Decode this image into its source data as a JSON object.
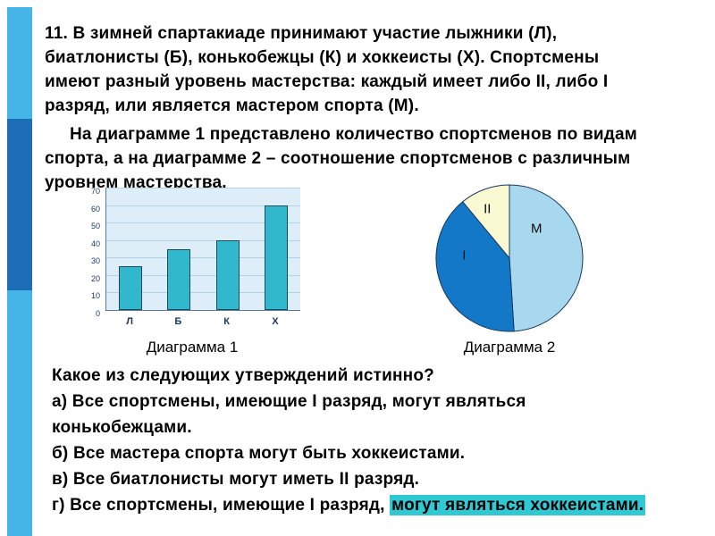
{
  "colors": {
    "stripe_light": "#45b5e7",
    "stripe_dark": "#1d6db8",
    "highlight": "#2fc9d4"
  },
  "problem": {
    "number": "11.",
    "p1_lines": [
      "В зимней спартакиаде принимают участие лыжники (Л),",
      "биатлонисты (Б), конькобежцы (К) и хоккеисты (Х). Спортсмены",
      "имеют разный уровень мастерства: каждый имеет либо II, либо I",
      "разряд, или является мастером спорта (М)."
    ],
    "p2_lines": [
      "На диаграмме 1 представлено количество спортсменов по видам",
      "спорта, а на диаграмме 2 – соотношение спортсменов с различным",
      "уровнем мастерства."
    ]
  },
  "question": {
    "lines": [
      "Какое из следующих утверждений истинно?",
      "а) Все спортсмены, имеющие I разряд, могут являться",
      "конькобежцами.",
      "б) Все мастера спорта могут быть хоккеистами.",
      "в) Все биатлонисты могут иметь II разряд."
    ],
    "last_line_prefix": "г) Все спортсмены, имеющие I разряд, ",
    "last_line_highlight": "могут являться хоккеистами."
  },
  "chart_data": [
    {
      "type": "bar",
      "title": "Диаграмма 1",
      "categories": [
        "Л",
        "Б",
        "К",
        "Х"
      ],
      "values": [
        25,
        35,
        40,
        60
      ],
      "ylim": [
        0,
        70
      ],
      "yticks": [
        0,
        10,
        20,
        30,
        40,
        50,
        60,
        70
      ],
      "xlabel": "",
      "ylabel": "",
      "grid": true,
      "legend": "none",
      "bar_color": "#31b8cd",
      "bar_border": "#1a4a66",
      "plot_bg": "#ddeef8",
      "grid_color": "#b3d2e6"
    },
    {
      "type": "pie",
      "title": "Диаграмма 2",
      "start_angle_deg": 0,
      "stroke": "#17375e",
      "slices": [
        {
          "label": "М",
          "value": 49,
          "color": "#a8d8ee",
          "label_angle": 42,
          "label_r": 0.55
        },
        {
          "label": "I",
          "value": 40,
          "color": "#1478c8",
          "label_angle": 274,
          "label_r": 0.62
        },
        {
          "label": "II",
          "value": 11,
          "color": "#fafad2",
          "label_angle": 336,
          "label_r": 0.74
        }
      ]
    }
  ]
}
